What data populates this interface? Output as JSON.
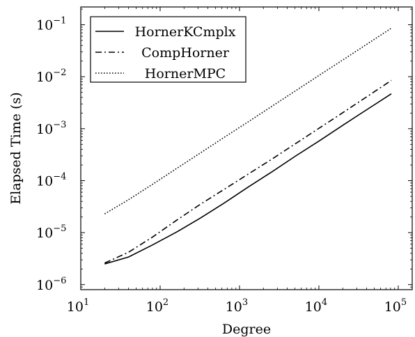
{
  "chart_data": {
    "type": "line",
    "title": "",
    "xlabel": "Degree",
    "ylabel": "Elapsed Time (s)",
    "xscale": "log",
    "yscale": "log",
    "xlim": [
      10,
      150000
    ],
    "ylim": [
      8e-07,
      0.22
    ],
    "xticks": [
      {
        "value": 10,
        "base": "10",
        "exp": "1"
      },
      {
        "value": 100,
        "base": "10",
        "exp": "2"
      },
      {
        "value": 1000,
        "base": "10",
        "exp": "3"
      },
      {
        "value": 10000,
        "base": "10",
        "exp": "4"
      },
      {
        "value": 100000,
        "base": "10",
        "exp": "5"
      }
    ],
    "yticks": [
      {
        "value": 1e-06,
        "base": "10",
        "exp": "−6"
      },
      {
        "value": 1e-05,
        "base": "10",
        "exp": "−5"
      },
      {
        "value": 0.0001,
        "base": "10",
        "exp": "−4"
      },
      {
        "value": 0.001,
        "base": "10",
        "exp": "−3"
      },
      {
        "value": 0.01,
        "base": "10",
        "exp": "−2"
      },
      {
        "value": 0.1,
        "base": "10",
        "exp": "−1"
      }
    ],
    "grid": false,
    "legend_position": "top-left",
    "x": [
      20,
      40,
      80,
      160,
      320,
      640,
      1280,
      2560,
      5120,
      10240,
      20480,
      40960,
      81920
    ],
    "series": [
      {
        "name": "HornerKCmplx",
        "style": "solid",
        "color": "#000000",
        "values": [
          2.5e-06,
          3.4e-06,
          5.8e-06,
          1.02e-05,
          1.9e-05,
          3.7e-05,
          7.5e-05,
          0.000148,
          0.0003,
          0.00059,
          0.00119,
          0.00237,
          0.0047
        ]
      },
      {
        "name": "CompHorner",
        "style": "dashdot",
        "color": "#000000",
        "values": [
          2.6e-06,
          4.2e-06,
          8.2e-06,
          1.72e-05,
          3.5e-05,
          6.8e-05,
          0.000133,
          0.00026,
          0.00052,
          0.00104,
          0.00208,
          0.0042,
          0.0085
        ]
      },
      {
        "name": "HornerMPC",
        "style": "dotted",
        "color": "#000000",
        "values": [
          2.3e-05,
          4.3e-05,
          8.5e-05,
          0.00017,
          0.00034,
          0.00068,
          0.00135,
          0.0027,
          0.0054,
          0.0108,
          0.0215,
          0.043,
          0.086
        ]
      }
    ]
  }
}
